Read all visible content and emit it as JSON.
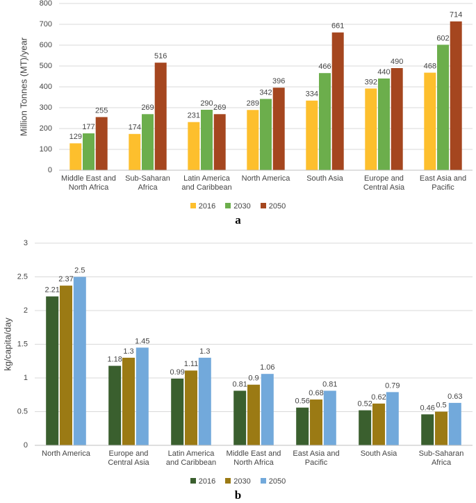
{
  "chart_data": [
    {
      "type": "bar",
      "ylabel": "Million Tonnes (MT)/year",
      "categories": [
        "Middle East and North Africa",
        "Sub-Saharan Africa",
        "Latin America and Caribbean",
        "North America",
        "South Asia",
        "Europe and Central Asia",
        "East Asia and Pacific"
      ],
      "series": [
        {
          "name": "2016",
          "color": "#fdbf2d",
          "values": [
            129,
            174,
            231,
            289,
            334,
            392,
            468
          ]
        },
        {
          "name": "2030",
          "color": "#6cae4c",
          "values": [
            177,
            269,
            290,
            342,
            466,
            440,
            602
          ]
        },
        {
          "name": "2050",
          "color": "#a5461f",
          "values": [
            255,
            516,
            269,
            396,
            661,
            490,
            714
          ]
        }
      ],
      "ylim": [
        0,
        800
      ],
      "yticks": [
        0,
        100,
        200,
        300,
        400,
        500,
        600,
        700,
        800
      ],
      "grid": true,
      "legend": "bottom",
      "caption": "a"
    },
    {
      "type": "bar",
      "ylabel": "kg/capita/day",
      "categories": [
        "North America",
        "Europe and Central Asia",
        "Latin America and Caribbean",
        "Middle East and North Africa",
        "East Asia and Pacific",
        "South Asia",
        "Sub-Saharan Africa"
      ],
      "series": [
        {
          "name": "2016",
          "color": "#3a5f2e",
          "values": [
            2.21,
            1.18,
            0.99,
            0.81,
            0.56,
            0.52,
            0.46
          ]
        },
        {
          "name": "2030",
          "color": "#9b7a14",
          "values": [
            2.37,
            1.3,
            1.11,
            0.9,
            0.68,
            0.62,
            0.5
          ]
        },
        {
          "name": "2050",
          "color": "#72a9db",
          "values": [
            2.5,
            1.45,
            1.3,
            1.06,
            0.81,
            0.79,
            0.63
          ]
        }
      ],
      "ylim": [
        0,
        3
      ],
      "yticks": [
        0,
        0.5,
        1,
        1.5,
        2,
        2.5,
        3
      ],
      "grid": true,
      "legend": "bottom",
      "caption": "b"
    }
  ]
}
